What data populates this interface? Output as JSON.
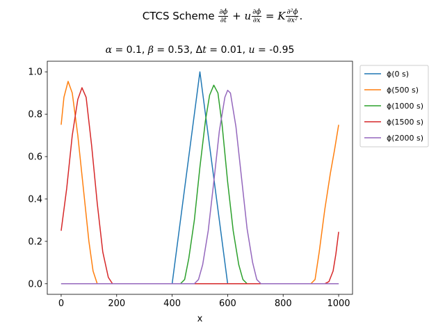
{
  "chart_data": {
    "type": "line",
    "title": "α =  0.1, β =  0.53, Δt =  0.01, u =  -0.95",
    "suptitle": {
      "prefix": "CTCS Scheme",
      "equation": "∂φ/∂t + u ∂φ/∂x = K ∂²φ/∂x²."
    },
    "xlabel": "x",
    "ylabel": "",
    "xlim": [
      -50,
      1050
    ],
    "ylim": [
      -0.05,
      1.05
    ],
    "xticks": [
      "0",
      "200",
      "400",
      "600",
      "800",
      "1000"
    ],
    "yticks": [
      "0.0",
      "0.2",
      "0.4",
      "0.6",
      "0.8",
      "1.0"
    ],
    "grid": false,
    "legend_position": "outside-top-right",
    "series": [
      {
        "name": "ϕ(0 s)",
        "color": "#1f77b4",
        "points": [
          [
            0,
            0
          ],
          [
            400,
            0
          ],
          [
            500,
            1.0
          ],
          [
            600,
            0
          ],
          [
            1000,
            0
          ]
        ]
      },
      {
        "name": "ϕ(500 s)",
        "color": "#ff7f0e",
        "points": [
          [
            0,
            0.75
          ],
          [
            10,
            0.88
          ],
          [
            25,
            0.955
          ],
          [
            40,
            0.9
          ],
          [
            60,
            0.7
          ],
          [
            80,
            0.45
          ],
          [
            100,
            0.2
          ],
          [
            115,
            0.06
          ],
          [
            130,
            0.0
          ],
          [
            900,
            0.0
          ],
          [
            915,
            0.02
          ],
          [
            930,
            0.15
          ],
          [
            950,
            0.35
          ],
          [
            970,
            0.52
          ],
          [
            985,
            0.63
          ],
          [
            1000,
            0.75
          ]
        ]
      },
      {
        "name": "ϕ(1000 s)",
        "color": "#2ca02c",
        "points": [
          [
            0,
            0
          ],
          [
            430,
            0
          ],
          [
            445,
            0.02
          ],
          [
            460,
            0.12
          ],
          [
            480,
            0.3
          ],
          [
            500,
            0.55
          ],
          [
            520,
            0.77
          ],
          [
            535,
            0.89
          ],
          [
            550,
            0.937
          ],
          [
            565,
            0.9
          ],
          [
            580,
            0.75
          ],
          [
            600,
            0.48
          ],
          [
            620,
            0.25
          ],
          [
            640,
            0.09
          ],
          [
            655,
            0.02
          ],
          [
            670,
            0.0
          ],
          [
            1000,
            0.0
          ]
        ]
      },
      {
        "name": "ϕ(1500 s)",
        "color": "#d62728",
        "points": [
          [
            0,
            0.25
          ],
          [
            20,
            0.45
          ],
          [
            40,
            0.7
          ],
          [
            60,
            0.87
          ],
          [
            75,
            0.925
          ],
          [
            90,
            0.88
          ],
          [
            110,
            0.65
          ],
          [
            130,
            0.38
          ],
          [
            150,
            0.15
          ],
          [
            170,
            0.03
          ],
          [
            185,
            0.0
          ],
          [
            950,
            0.0
          ],
          [
            965,
            0.01
          ],
          [
            980,
            0.06
          ],
          [
            990,
            0.14
          ],
          [
            1000,
            0.245
          ]
        ]
      },
      {
        "name": "ϕ(2000 s)",
        "color": "#9467bd",
        "points": [
          [
            0,
            0
          ],
          [
            480,
            0
          ],
          [
            495,
            0.02
          ],
          [
            510,
            0.09
          ],
          [
            530,
            0.25
          ],
          [
            550,
            0.48
          ],
          [
            570,
            0.72
          ],
          [
            590,
            0.88
          ],
          [
            600,
            0.913
          ],
          [
            610,
            0.9
          ],
          [
            630,
            0.74
          ],
          [
            650,
            0.5
          ],
          [
            670,
            0.26
          ],
          [
            690,
            0.1
          ],
          [
            705,
            0.02
          ],
          [
            720,
            0.0
          ],
          [
            1000,
            0.0
          ]
        ]
      }
    ]
  }
}
